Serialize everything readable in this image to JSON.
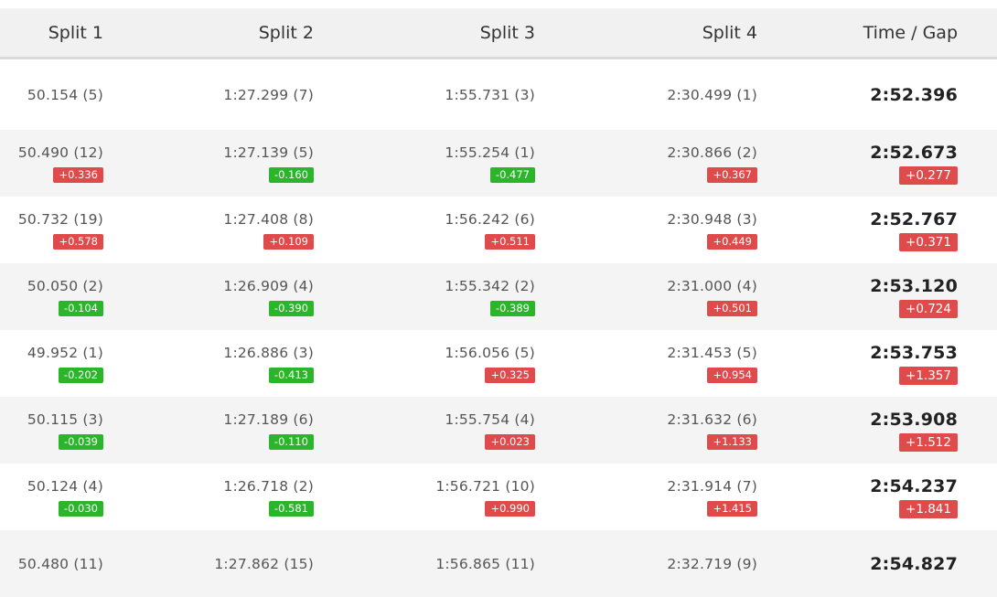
{
  "headers": [
    "Split 1",
    "Split 2",
    "Split 3",
    "Split 4",
    "Time / Gap"
  ],
  "rows": [
    {
      "s1": "50.154 (5)",
      "s2": "1:27.299 (7)",
      "s3": "1:55.731 (3)",
      "s4": "2:30.499 (1)",
      "time": "2:52.396",
      "d1": "",
      "d2": "",
      "d3": "",
      "d4": "",
      "gap": ""
    },
    {
      "s1": "50.490 (12)",
      "s2": "1:27.139 (5)",
      "s3": "1:55.254 (1)",
      "s4": "2:30.866 (2)",
      "time": "2:52.673",
      "d1": "+0.336",
      "d2": "-0.160",
      "d3": "-0.477",
      "d4": "+0.367",
      "gap": "+0.277"
    },
    {
      "s1": "50.732 (19)",
      "s2": "1:27.408 (8)",
      "s3": "1:56.242 (6)",
      "s4": "2:30.948 (3)",
      "time": "2:52.767",
      "d1": "+0.578",
      "d2": "+0.109",
      "d3": "+0.511",
      "d4": "+0.449",
      "gap": "+0.371"
    },
    {
      "s1": "50.050 (2)",
      "s2": "1:26.909 (4)",
      "s3": "1:55.342 (2)",
      "s4": "2:31.000 (4)",
      "time": "2:53.120",
      "d1": "-0.104",
      "d2": "-0.390",
      "d3": "-0.389",
      "d4": "+0.501",
      "gap": "+0.724"
    },
    {
      "s1": "49.952 (1)",
      "s2": "1:26.886 (3)",
      "s3": "1:56.056 (5)",
      "s4": "2:31.453 (5)",
      "time": "2:53.753",
      "d1": "-0.202",
      "d2": "-0.413",
      "d3": "+0.325",
      "d4": "+0.954",
      "gap": "+1.357"
    },
    {
      "s1": "50.115 (3)",
      "s2": "1:27.189 (6)",
      "s3": "1:55.754 (4)",
      "s4": "2:31.632 (6)",
      "time": "2:53.908",
      "d1": "-0.039",
      "d2": "-0.110",
      "d3": "+0.023",
      "d4": "+1.133",
      "gap": "+1.512"
    },
    {
      "s1": "50.124 (4)",
      "s2": "1:26.718 (2)",
      "s3": "1:56.721 (10)",
      "s4": "2:31.914 (7)",
      "time": "2:54.237",
      "d1": "-0.030",
      "d2": "-0.581",
      "d3": "+0.990",
      "d4": "+1.415",
      "gap": "+1.841"
    },
    {
      "s1": "50.480 (11)",
      "s2": "1:27.862 (15)",
      "s3": "1:56.865 (11)",
      "s4": "2:32.719 (9)",
      "time": "2:54.827",
      "d1": "",
      "d2": "",
      "d3": "",
      "d4": "",
      "gap": ""
    }
  ],
  "colors": {
    "positive": "#df4b4b",
    "negative": "#2bb52b"
  }
}
